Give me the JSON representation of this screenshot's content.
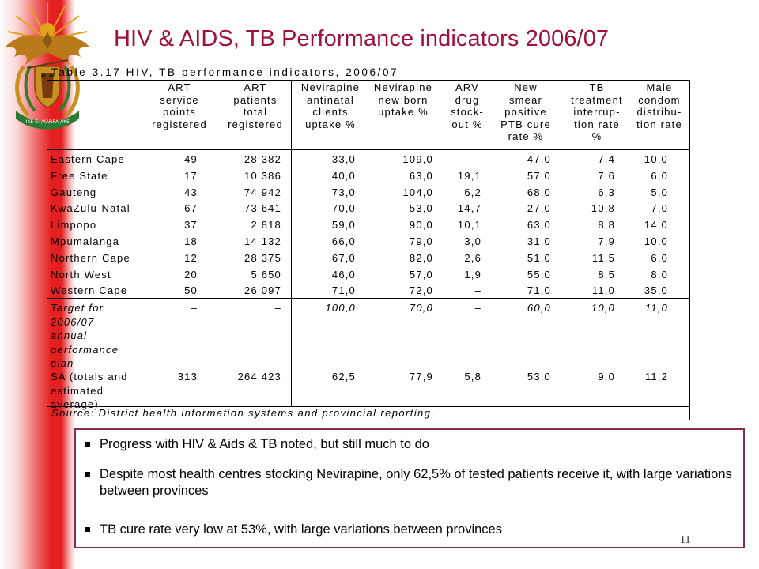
{
  "slide": {
    "title": "HIV & AIDS, TB Performance indicators 2006/07",
    "page_number": "11"
  },
  "crest": {
    "motto": "!KE E: /XARRA //KE"
  },
  "table": {
    "caption": "Table 3.17  HIV, TB performance indicators, 2006/07",
    "headers": [
      "ART\nservice\npoints\nregistered",
      "ART\npatients\ntotal\nregistered",
      "Nevirapine\nantinatal\nclients\nuptake %",
      "Nevirapine\nnew born\nuptake %",
      "ARV\ndrug\nstock-\nout %",
      "New\nsmear\npositive\nPTB cure\nrate %",
      "TB\ntreatment\ninterrup-\ntion rate\n%",
      "Male\ncondom\ndistribu-\ntion rate"
    ],
    "rows": [
      {
        "label": "Eastern Cape",
        "values": [
          "49",
          "28 382",
          "33,0",
          "109,0",
          "–",
          "47,0",
          "7,4",
          "10,0"
        ]
      },
      {
        "label": "Free State",
        "values": [
          "17",
          "10 386",
          "40,0",
          "63,0",
          "19,1",
          "57,0",
          "7,6",
          "6,0"
        ]
      },
      {
        "label": "Gauteng",
        "values": [
          "43",
          "74 942",
          "73,0",
          "104,0",
          "6,2",
          "68,0",
          "6,3",
          "5,0"
        ]
      },
      {
        "label": "KwaZulu-Natal",
        "values": [
          "67",
          "73 641",
          "70,0",
          "53,0",
          "14,7",
          "27,0",
          "10,8",
          "7,0"
        ]
      },
      {
        "label": "Limpopo",
        "values": [
          "37",
          "2 818",
          "59,0",
          "90,0",
          "10,1",
          "63,0",
          "8,8",
          "14,0"
        ]
      },
      {
        "label": "Mpumalanga",
        "values": [
          "18",
          "14 132",
          "66,0",
          "79,0",
          "3,0",
          "31,0",
          "7,9",
          "10,0"
        ]
      },
      {
        "label": "Northern Cape",
        "values": [
          "12",
          "28 375",
          "67,0",
          "82,0",
          "2,6",
          "51,0",
          "11,5",
          "6,0"
        ]
      },
      {
        "label": "North West",
        "values": [
          "20",
          "5 650",
          "46,0",
          "57,0",
          "1,9",
          "55,0",
          "8,5",
          "8,0"
        ]
      },
      {
        "label": "Western Cape",
        "values": [
          "50",
          "26 097",
          "71,0",
          "72,0",
          "–",
          "71,0",
          "11,0",
          "35,0"
        ]
      }
    ],
    "target": {
      "label": "Target for\n2006/07\nannual\nperformance\nplan",
      "values": [
        "–",
        "–",
        "100,0",
        "70,0",
        "–",
        "60,0",
        "10,0",
        "11,0"
      ]
    },
    "sa": {
      "label": "SA (totals and\nestimated\naverage)",
      "values": [
        "313",
        "264 423",
        "62,5",
        "77,9",
        "5,8",
        "53,0",
        "9,0",
        "11,2"
      ]
    },
    "source": "Source: District health information systems and provincial reporting."
  },
  "notes": [
    "Progress with HIV & Aids & TB noted, but still much to do",
    "Despite most health centres stocking Nevirapine, only 62,5% of tested patients receive it, with large variations between provinces",
    "TB cure rate very low at 53%, with large variations between provinces"
  ],
  "colors": {
    "title": "#a0113a",
    "sidebar_red": "#e51f1f",
    "notes_border": "#8a2a4e"
  }
}
